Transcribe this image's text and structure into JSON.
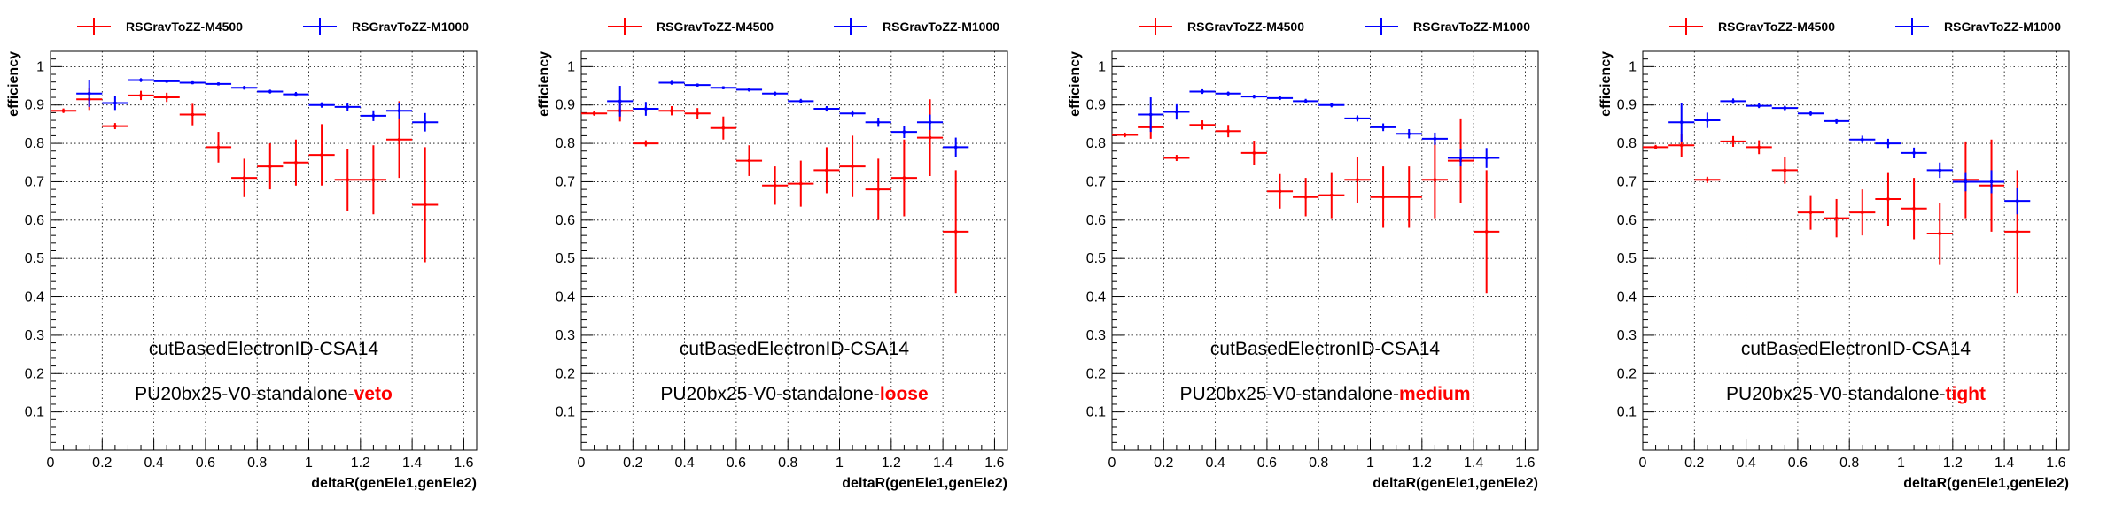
{
  "chart_data": [
    {
      "type": "scatter",
      "xlabel": "deltaR(genEle1,genEle2)",
      "ylabel": "efficiency",
      "xlim": [
        0,
        1.65
      ],
      "ylim": [
        0,
        1.04
      ],
      "xticks": [
        "0",
        "0.2",
        "0.4",
        "0.6",
        "0.8",
        "1",
        "1.2",
        "1.4",
        "1.6"
      ],
      "yticks": [
        "0.1",
        "0.2",
        "0.3",
        "0.4",
        "0.5",
        "0.6",
        "0.7",
        "0.8",
        "0.9",
        "1"
      ],
      "grid": true,
      "legend": "top",
      "annotation": {
        "line1": "cutBasedElectronID-CSA14",
        "line2_prefix": "PU20bx25-V0-standalone-",
        "line2_highlight": "veto",
        "highlight_color": "#ff0000"
      },
      "series": [
        {
          "name": "RSGravToZZ-M4500",
          "color": "#ff0000",
          "points": [
            [
              0.05,
              0.885,
              0.05,
              0.006
            ],
            [
              0.15,
              0.915,
              0.05,
              0.028
            ],
            [
              0.25,
              0.845,
              0.05,
              0.008
            ],
            [
              0.35,
              0.925,
              0.05,
              0.012
            ],
            [
              0.45,
              0.92,
              0.05,
              0.012
            ],
            [
              0.55,
              0.875,
              0.05,
              0.028
            ],
            [
              0.65,
              0.79,
              0.05,
              0.04
            ],
            [
              0.75,
              0.71,
              0.05,
              0.05
            ],
            [
              0.85,
              0.74,
              0.05,
              0.06
            ],
            [
              0.95,
              0.75,
              0.05,
              0.06
            ],
            [
              1.05,
              0.77,
              0.05,
              0.08
            ],
            [
              1.15,
              0.705,
              0.05,
              0.08
            ],
            [
              1.25,
              0.705,
              0.05,
              0.09
            ],
            [
              1.35,
              0.81,
              0.05,
              0.1
            ],
            [
              1.45,
              0.64,
              0.05,
              0.15
            ]
          ]
        },
        {
          "name": "RSGravToZZ-M1000",
          "color": "#0000ff",
          "points": [
            [
              0.15,
              0.93,
              0.05,
              0.035
            ],
            [
              0.25,
              0.905,
              0.05,
              0.018
            ],
            [
              0.35,
              0.965,
              0.05,
              0.005
            ],
            [
              0.45,
              0.962,
              0.05,
              0.004
            ],
            [
              0.55,
              0.958,
              0.05,
              0.004
            ],
            [
              0.65,
              0.955,
              0.05,
              0.004
            ],
            [
              0.75,
              0.945,
              0.05,
              0.005
            ],
            [
              0.85,
              0.935,
              0.05,
              0.005
            ],
            [
              0.95,
              0.928,
              0.05,
              0.006
            ],
            [
              1.05,
              0.9,
              0.05,
              0.007
            ],
            [
              1.15,
              0.895,
              0.05,
              0.01
            ],
            [
              1.25,
              0.872,
              0.05,
              0.014
            ],
            [
              1.35,
              0.885,
              0.05,
              0.02
            ],
            [
              1.45,
              0.855,
              0.05,
              0.024
            ]
          ]
        }
      ]
    },
    {
      "type": "scatter",
      "xlabel": "deltaR(genEle1,genEle2)",
      "ylabel": "efficiency",
      "xlim": [
        0,
        1.65
      ],
      "ylim": [
        0,
        1.04
      ],
      "xticks": [
        "0",
        "0.2",
        "0.4",
        "0.6",
        "0.8",
        "1",
        "1.2",
        "1.4",
        "1.6"
      ],
      "yticks": [
        "0.1",
        "0.2",
        "0.3",
        "0.4",
        "0.5",
        "0.6",
        "0.7",
        "0.8",
        "0.9",
        "1"
      ],
      "grid": true,
      "legend": "top",
      "annotation": {
        "line1": "cutBasedElectronID-CSA14",
        "line2_prefix": "PU20bx25-V0-standalone-",
        "line2_highlight": "loose",
        "highlight_color": "#ff0000"
      },
      "series": [
        {
          "name": "RSGravToZZ-M4500",
          "color": "#ff0000",
          "points": [
            [
              0.05,
              0.878,
              0.05,
              0.006
            ],
            [
              0.15,
              0.885,
              0.05,
              0.028
            ],
            [
              0.25,
              0.8,
              0.05,
              0.008
            ],
            [
              0.35,
              0.885,
              0.05,
              0.012
            ],
            [
              0.45,
              0.878,
              0.05,
              0.014
            ],
            [
              0.55,
              0.84,
              0.05,
              0.03
            ],
            [
              0.65,
              0.755,
              0.05,
              0.04
            ],
            [
              0.75,
              0.69,
              0.05,
              0.05
            ],
            [
              0.85,
              0.695,
              0.05,
              0.06
            ],
            [
              0.95,
              0.73,
              0.05,
              0.06
            ],
            [
              1.05,
              0.74,
              0.05,
              0.08
            ],
            [
              1.15,
              0.68,
              0.05,
              0.08
            ],
            [
              1.25,
              0.71,
              0.05,
              0.1
            ],
            [
              1.35,
              0.815,
              0.05,
              0.1
            ],
            [
              1.45,
              0.57,
              0.05,
              0.16
            ]
          ]
        },
        {
          "name": "RSGravToZZ-M1000",
          "color": "#0000ff",
          "points": [
            [
              0.15,
              0.91,
              0.05,
              0.04
            ],
            [
              0.25,
              0.89,
              0.05,
              0.018
            ],
            [
              0.35,
              0.958,
              0.05,
              0.005
            ],
            [
              0.45,
              0.952,
              0.05,
              0.004
            ],
            [
              0.55,
              0.945,
              0.05,
              0.004
            ],
            [
              0.65,
              0.94,
              0.05,
              0.005
            ],
            [
              0.75,
              0.93,
              0.05,
              0.005
            ],
            [
              0.85,
              0.91,
              0.05,
              0.006
            ],
            [
              0.95,
              0.89,
              0.05,
              0.007
            ],
            [
              1.05,
              0.878,
              0.05,
              0.008
            ],
            [
              1.15,
              0.855,
              0.05,
              0.012
            ],
            [
              1.25,
              0.83,
              0.05,
              0.016
            ],
            [
              1.35,
              0.855,
              0.05,
              0.02
            ],
            [
              1.45,
              0.79,
              0.05,
              0.025
            ]
          ]
        }
      ]
    },
    {
      "type": "scatter",
      "xlabel": "deltaR(genEle1,genEle2)",
      "ylabel": "efficiency",
      "xlim": [
        0,
        1.65
      ],
      "ylim": [
        0,
        1.04
      ],
      "xticks": [
        "0",
        "0.2",
        "0.4",
        "0.6",
        "0.8",
        "1",
        "1.2",
        "1.4",
        "1.6"
      ],
      "yticks": [
        "0.1",
        "0.2",
        "0.3",
        "0.4",
        "0.5",
        "0.6",
        "0.7",
        "0.8",
        "0.9",
        "1"
      ],
      "grid": true,
      "legend": "top",
      "annotation": {
        "line1": "cutBasedElectronID-CSA14",
        "line2_prefix": "PU20bx25-V0-standalone-",
        "line2_highlight": "medium",
        "highlight_color": "#ff0000"
      },
      "series": [
        {
          "name": "RSGravToZZ-M4500",
          "color": "#ff0000",
          "points": [
            [
              0.05,
              0.822,
              0.05,
              0.006
            ],
            [
              0.15,
              0.842,
              0.05,
              0.03
            ],
            [
              0.25,
              0.762,
              0.05,
              0.008
            ],
            [
              0.35,
              0.848,
              0.05,
              0.012
            ],
            [
              0.45,
              0.832,
              0.05,
              0.016
            ],
            [
              0.55,
              0.775,
              0.05,
              0.032
            ],
            [
              0.65,
              0.675,
              0.05,
              0.045
            ],
            [
              0.75,
              0.66,
              0.05,
              0.05
            ],
            [
              0.85,
              0.665,
              0.05,
              0.06
            ],
            [
              0.95,
              0.705,
              0.05,
              0.06
            ],
            [
              1.05,
              0.66,
              0.05,
              0.08
            ],
            [
              1.15,
              0.66,
              0.05,
              0.08
            ],
            [
              1.25,
              0.705,
              0.05,
              0.1
            ],
            [
              1.35,
              0.755,
              0.05,
              0.11
            ],
            [
              1.45,
              0.57,
              0.05,
              0.16
            ]
          ]
        },
        {
          "name": "RSGravToZZ-M1000",
          "color": "#0000ff",
          "points": [
            [
              0.15,
              0.875,
              0.05,
              0.045
            ],
            [
              0.25,
              0.882,
              0.05,
              0.02
            ],
            [
              0.35,
              0.935,
              0.05,
              0.006
            ],
            [
              0.45,
              0.93,
              0.05,
              0.005
            ],
            [
              0.55,
              0.922,
              0.05,
              0.005
            ],
            [
              0.65,
              0.918,
              0.05,
              0.005
            ],
            [
              0.75,
              0.91,
              0.05,
              0.006
            ],
            [
              0.85,
              0.9,
              0.05,
              0.006
            ],
            [
              0.95,
              0.865,
              0.05,
              0.008
            ],
            [
              1.05,
              0.842,
              0.05,
              0.01
            ],
            [
              1.15,
              0.825,
              0.05,
              0.012
            ],
            [
              1.25,
              0.812,
              0.05,
              0.016
            ],
            [
              1.35,
              0.762,
              0.05,
              0.022
            ],
            [
              1.45,
              0.762,
              0.05,
              0.026
            ]
          ]
        }
      ]
    },
    {
      "type": "scatter",
      "xlabel": "deltaR(genEle1,genEle2)",
      "ylabel": "efficiency",
      "xlim": [
        0,
        1.65
      ],
      "ylim": [
        0,
        1.04
      ],
      "xticks": [
        "0",
        "0.2",
        "0.4",
        "0.6",
        "0.8",
        "1",
        "1.2",
        "1.4",
        "1.6"
      ],
      "yticks": [
        "0.1",
        "0.2",
        "0.3",
        "0.4",
        "0.5",
        "0.6",
        "0.7",
        "0.8",
        "0.9",
        "1"
      ],
      "grid": true,
      "legend": "top",
      "annotation": {
        "line1": "cutBasedElectronID-CSA14",
        "line2_prefix": "PU20bx25-V0-standalone-",
        "line2_highlight": "tight",
        "highlight_color": "#ff0000"
      },
      "series": [
        {
          "name": "RSGravToZZ-M4500",
          "color": "#ff0000",
          "points": [
            [
              0.05,
              0.79,
              0.05,
              0.006
            ],
            [
              0.15,
              0.795,
              0.05,
              0.03
            ],
            [
              0.25,
              0.705,
              0.05,
              0.008
            ],
            [
              0.35,
              0.805,
              0.05,
              0.014
            ],
            [
              0.45,
              0.79,
              0.05,
              0.018
            ],
            [
              0.55,
              0.73,
              0.05,
              0.035
            ],
            [
              0.65,
              0.62,
              0.05,
              0.045
            ],
            [
              0.75,
              0.605,
              0.05,
              0.05
            ],
            [
              0.85,
              0.62,
              0.05,
              0.06
            ],
            [
              0.95,
              0.655,
              0.05,
              0.07
            ],
            [
              1.05,
              0.63,
              0.05,
              0.08
            ],
            [
              1.15,
              0.565,
              0.05,
              0.08
            ],
            [
              1.25,
              0.705,
              0.05,
              0.1
            ],
            [
              1.35,
              0.69,
              0.05,
              0.12
            ],
            [
              1.45,
              0.57,
              0.05,
              0.16
            ]
          ]
        },
        {
          "name": "RSGravToZZ-M1000",
          "color": "#0000ff",
          "points": [
            [
              0.15,
              0.855,
              0.05,
              0.05
            ],
            [
              0.25,
              0.86,
              0.05,
              0.02
            ],
            [
              0.35,
              0.91,
              0.05,
              0.007
            ],
            [
              0.45,
              0.898,
              0.05,
              0.006
            ],
            [
              0.55,
              0.892,
              0.05,
              0.006
            ],
            [
              0.65,
              0.878,
              0.05,
              0.006
            ],
            [
              0.75,
              0.858,
              0.05,
              0.007
            ],
            [
              0.85,
              0.81,
              0.05,
              0.01
            ],
            [
              0.95,
              0.8,
              0.05,
              0.012
            ],
            [
              1.05,
              0.775,
              0.05,
              0.014
            ],
            [
              1.15,
              0.73,
              0.05,
              0.02
            ],
            [
              1.25,
              0.7,
              0.05,
              0.025
            ],
            [
              1.35,
              0.7,
              0.05,
              0.03
            ],
            [
              1.45,
              0.65,
              0.05,
              0.035
            ]
          ]
        }
      ]
    }
  ]
}
